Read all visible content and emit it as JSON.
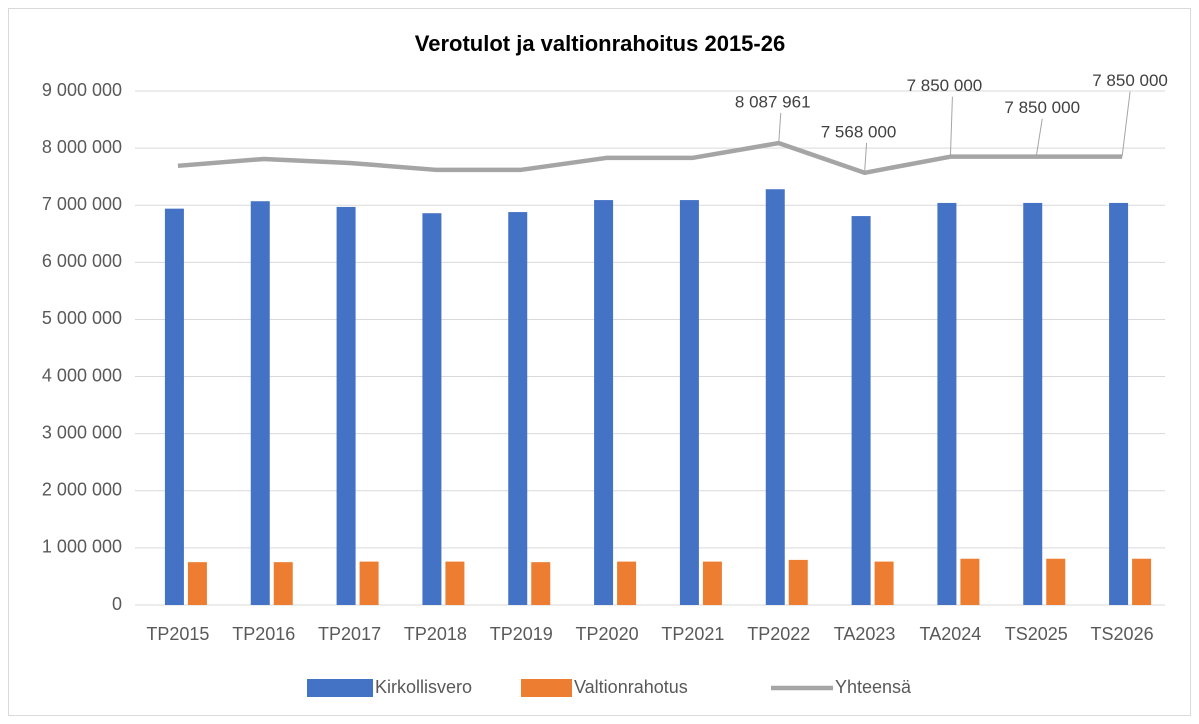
{
  "chart_data": {
    "type": "bar",
    "title": "Verotulot ja valtionrahoitus 2015-26",
    "categories": [
      "TP2015",
      "TP2016",
      "TP2017",
      "TP2018",
      "TP2019",
      "TP2020",
      "TP2021",
      "TP2022",
      "TA2023",
      "TA2024",
      "TS2025",
      "TS2026"
    ],
    "series": [
      {
        "name": "Kirkollisvero",
        "color": "#4472c4",
        "type": "bar",
        "values": [
          6940000,
          7070000,
          6970000,
          6860000,
          6880000,
          7090000,
          7090000,
          7280000,
          6810000,
          7040000,
          7040000,
          7040000
        ]
      },
      {
        "name": "Valtionrahotus",
        "color": "#ed7d31",
        "type": "bar",
        "values": [
          750000,
          750000,
          760000,
          760000,
          750000,
          760000,
          760000,
          790000,
          760000,
          810000,
          810000,
          810000
        ]
      },
      {
        "name": "Yhteensä",
        "color": "#a5a5a5",
        "type": "line",
        "values": [
          7690000,
          7810000,
          7740000,
          7620000,
          7620000,
          7830000,
          7830000,
          8087961,
          7568000,
          7850000,
          7850000,
          7850000
        ],
        "value_labels": [
          null,
          null,
          null,
          null,
          null,
          null,
          null,
          "8 087 961",
          "7 568 000",
          "7 850 000",
          "7 850 000",
          "7 850 000"
        ]
      }
    ],
    "ylim": [
      0,
      9000000
    ],
    "yticks": [
      0,
      {
        "value": 1000000,
        "label": "1 000 000"
      },
      {
        "value": 2000000,
        "label": "2 000 000"
      },
      {
        "value": 3000000,
        "label": "3 000 000"
      },
      {
        "value": 4000000,
        "label": "4 000 000"
      },
      {
        "value": 5000000,
        "label": "5 000 000"
      },
      {
        "value": 6000000,
        "label": "6 000 000"
      },
      {
        "value": 7000000,
        "label": "7 000 000"
      },
      {
        "value": 8000000,
        "label": "8 000 000"
      },
      {
        "value": 9000000,
        "label": "9 000 000"
      }
    ],
    "grid": true,
    "legend": "bottom"
  }
}
